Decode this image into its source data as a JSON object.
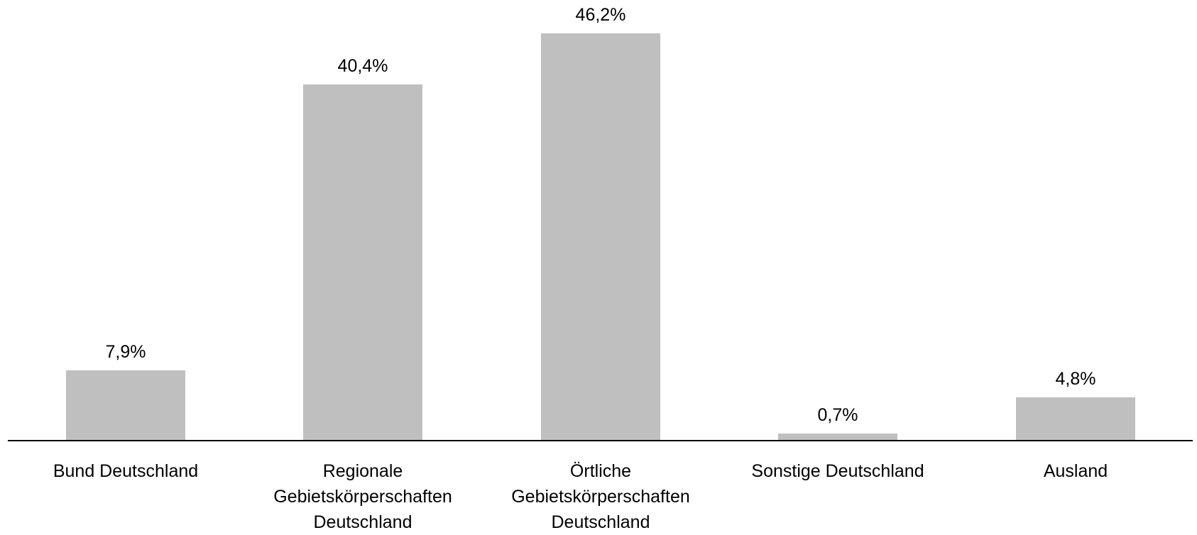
{
  "chart_data": {
    "type": "bar",
    "categories": [
      "Bund Deutschland",
      "Regionale Gebietskörperschaften Deutschland",
      "Örtliche Gebietskörperschaften Deutschland",
      "Sonstige Deutschland",
      "Ausland"
    ],
    "values": [
      7.9,
      40.4,
      46.2,
      0.7,
      4.8
    ],
    "value_labels": [
      "7,9%",
      "40,4%",
      "46,2%",
      "0,7%",
      "4,8%"
    ],
    "color": "#bfbfbf"
  }
}
